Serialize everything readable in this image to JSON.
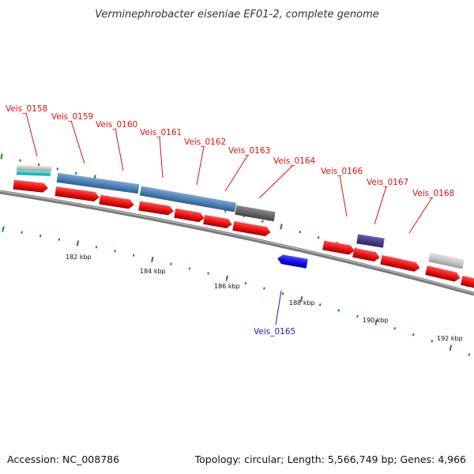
{
  "title": "Verminephrobacter eiseniae EF01-2, complete genome",
  "footer": {
    "accession": "Accession: NC_008786",
    "summary": "Topology: circular; Length: 5,566,749 bp; Genes: 4,966"
  },
  "colors": {
    "label_red": "#dd1111",
    "label_blue": "#1a1acc",
    "tick_green": "#1e8a1e",
    "cds_red": "#ee1111",
    "steel_blue": "#4f83b8",
    "dark_gray": "#6a6a6a",
    "purple": "#4a3f8a",
    "light_gray": "#c8c8c8",
    "cyan": "#22cccc",
    "backbone": "#888888"
  },
  "scale_labels": [
    "182 kbp",
    "184 kbp",
    "186 kbp",
    "188 kbp",
    "190 kbp",
    "192 kbp"
  ],
  "gene_labels": [
    {
      "text": "Veis_0158",
      "color": "red"
    },
    {
      "text": "Veis_0159",
      "color": "red"
    },
    {
      "text": "Veis_0160",
      "color": "red"
    },
    {
      "text": "Veis_0161",
      "color": "red"
    },
    {
      "text": "Veis_0162",
      "color": "red"
    },
    {
      "text": "Veis_0163",
      "color": "red"
    },
    {
      "text": "Veis_0164",
      "color": "red"
    },
    {
      "text": "Veis_0166",
      "color": "red"
    },
    {
      "text": "Veis_0167",
      "color": "red"
    },
    {
      "text": "Veis_0168",
      "color": "red"
    },
    {
      "text": "Veis_0165",
      "color": "blue"
    }
  ]
}
